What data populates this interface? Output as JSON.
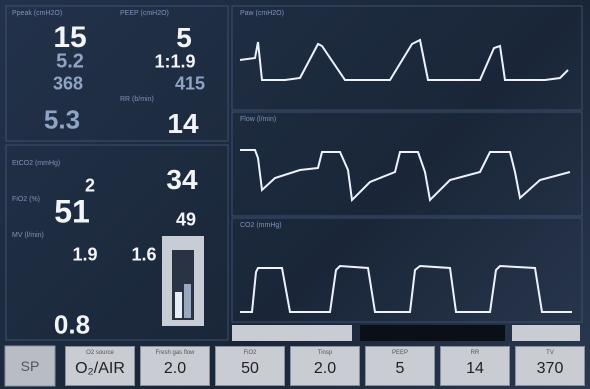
{
  "readings": [
    "15",
    "5",
    "5.2",
    "1:1.9",
    "368",
    "415",
    "5.3",
    "14",
    "2",
    "34",
    "51",
    "49",
    "1.9",
    "1.6",
    "0.8"
  ],
  "labels": [
    "Ppeak (cmH2O)",
    "PEEP (cmH2O)",
    "RR (b/min)",
    "EtCO2 (mmHg)",
    "FiO2 (%)",
    "MV (l/min)"
  ],
  "waveforms": [
    "Paw (cmH2O)",
    "Flow (l/min)",
    "CO2 (mmHg)"
  ],
  "mode": "SP",
  "controls": [
    {
      "label": "O2 source",
      "value": "O₂/AIR"
    },
    {
      "label": "Fresh gas flow",
      "value": "2.0"
    },
    {
      "label": "FiO2",
      "value": "50"
    },
    {
      "label": "Tinsp",
      "value": "2.0"
    },
    {
      "label": "PEEP",
      "value": "5"
    },
    {
      "label": "RR",
      "value": "14"
    },
    {
      "label": "TV",
      "value": "370"
    }
  ]
}
